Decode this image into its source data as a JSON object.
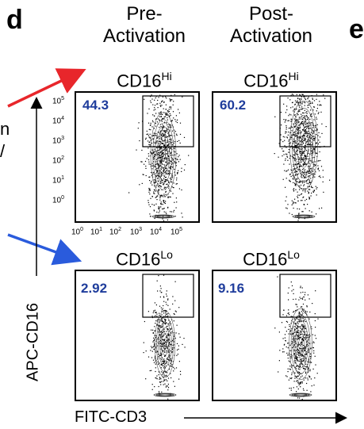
{
  "figure": {
    "panel_letter": "d",
    "next_panel_letter": "e",
    "left_fragment": "n",
    "left_fragment2": "/",
    "columns": [
      {
        "line1": "Pre-",
        "line2": "Activation"
      },
      {
        "line1": "Post-",
        "line2": "Activation"
      }
    ],
    "rows": [
      {
        "label": "CD16",
        "sup": "Hi"
      },
      {
        "label": "CD16",
        "sup": "Lo"
      }
    ],
    "y_axis_label": "APC-CD16",
    "x_axis_label": "FITC-CD3",
    "arrow_colors": {
      "top": "#e8262b",
      "bottom": "#2a5bdc"
    },
    "value_color": "#1f3d9c"
  },
  "y_ticks": [
    {
      "base": "10",
      "exp": "5"
    },
    {
      "base": "10",
      "exp": "4"
    },
    {
      "base": "10",
      "exp": "3"
    },
    {
      "base": "10",
      "exp": "2"
    },
    {
      "base": "10",
      "exp": "1"
    },
    {
      "base": "10",
      "exp": "0"
    }
  ],
  "x_ticks": [
    {
      "base": "10",
      "exp": "0"
    },
    {
      "base": "10",
      "exp": "1"
    },
    {
      "base": "10",
      "exp": "2"
    },
    {
      "base": "10",
      "exp": "3"
    },
    {
      "base": "10",
      "exp": "4"
    },
    {
      "base": "10",
      "exp": "5"
    }
  ],
  "chart_data": [
    {
      "type": "scatter",
      "title": "CD16Hi Pre-Activation",
      "xlabel": "FITC-CD3",
      "ylabel": "APC-CD16",
      "xscale": "log",
      "yscale": "log",
      "xlim": [
        1,
        100000
      ],
      "ylim": [
        1,
        100000
      ],
      "gate_percent": 44.3,
      "gate": {
        "x": [
          1000,
          100000
        ],
        "y": [
          1000,
          100000
        ]
      }
    },
    {
      "type": "scatter",
      "title": "CD16Hi Post-Activation",
      "xlabel": "FITC-CD3",
      "ylabel": "APC-CD16",
      "xscale": "log",
      "yscale": "log",
      "xlim": [
        1,
        100000
      ],
      "ylim": [
        1,
        100000
      ],
      "gate_percent": 60.2,
      "gate": {
        "x": [
          1000,
          100000
        ],
        "y": [
          1000,
          100000
        ]
      }
    },
    {
      "type": "scatter",
      "title": "CD16Lo Pre-Activation",
      "xlabel": "FITC-CD3",
      "ylabel": "APC-CD16",
      "xscale": "log",
      "yscale": "log",
      "xlim": [
        1,
        100000
      ],
      "ylim": [
        1,
        100000
      ],
      "gate_percent": 2.92,
      "gate": {
        "x": [
          1000,
          100000
        ],
        "y": [
          1000,
          100000
        ]
      }
    },
    {
      "type": "scatter",
      "title": "CD16Lo Post-Activation",
      "xlabel": "FITC-CD3",
      "ylabel": "APC-CD16",
      "xscale": "log",
      "yscale": "log",
      "xlim": [
        1,
        100000
      ],
      "ylim": [
        1,
        100000
      ],
      "gate_percent": 9.16,
      "gate": {
        "x": [
          1000,
          100000
        ],
        "y": [
          1000,
          100000
        ]
      }
    }
  ]
}
